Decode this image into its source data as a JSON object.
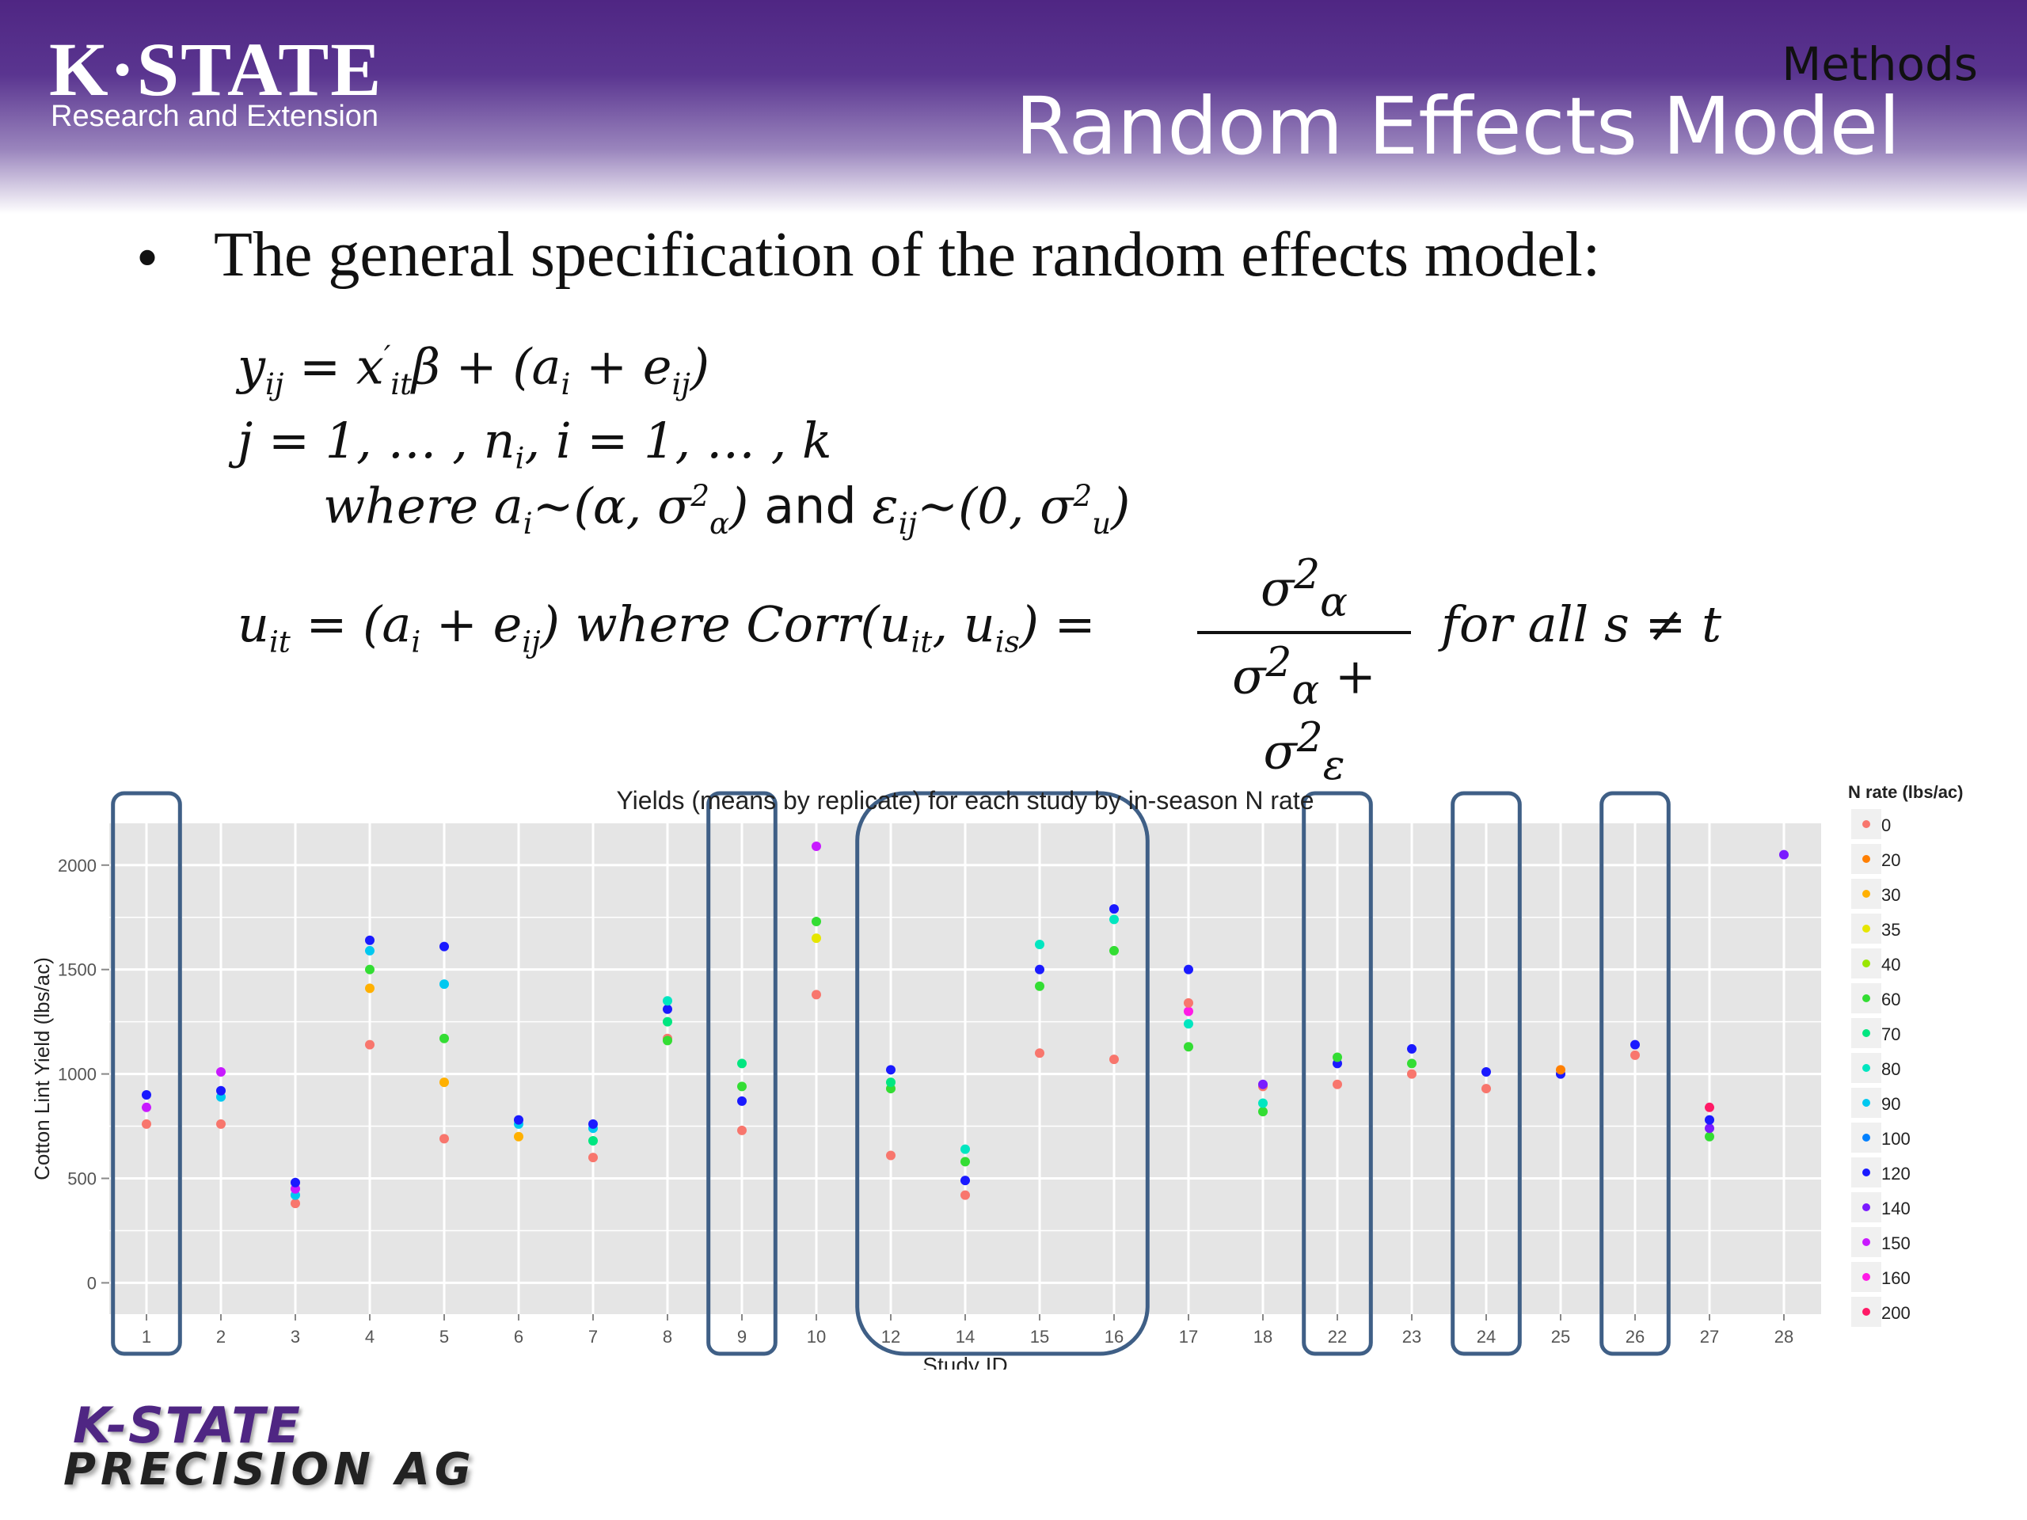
{
  "header": {
    "logo_main": "K·STATE",
    "logo_sub": "Research and Extension",
    "section": "Methods",
    "title": "Random Effects Model"
  },
  "body": {
    "bullet": "•",
    "bullet_text": "The general specification of the random effects model:"
  },
  "equations": {
    "eq1": {
      "y": "y",
      "y_sub": "ij",
      "eq": " = ",
      "x": "x",
      "x_sup": "′",
      "x_sub": "it",
      "rest": "β + (a",
      "a_sub": "i",
      "plus": " + e",
      "e_sub": "ij",
      "close": ")"
    },
    "eq2": {
      "j": "j",
      "mid": " = 1, … , n",
      "n_sub": "i",
      "tail": ", i = 1, … , k"
    },
    "eq3": {
      "where": "where a",
      "a_sub": "i",
      "dist1": "∼(α, σ",
      "sig1_sup": "2",
      "sig1_sub": "α",
      "close1": ") ",
      "and": "and",
      "eps": " ε",
      "eps_sub": "ij",
      "dist2": "∼(0, σ",
      "sig2_sup": "2",
      "sig2_sub": "u",
      "close2": ")"
    },
    "eq4": {
      "u": "u",
      "u_sub": "it",
      "eq": " =  (a",
      "a_sub": "i",
      "plus": " + e",
      "e_sub": "ij",
      "mid": ") where Corr(u",
      "u1_sub": "it",
      "comma": ", u",
      "u2_sub": "is",
      "tail": ") = "
    },
    "frac": {
      "num": "σ",
      "num_sup": "2",
      "num_sub": "α",
      "den1": "σ",
      "den1_sup": "2",
      "den1_sub": "α",
      "den_plus": " + σ",
      "den2_sup": "2",
      "den2_sub": "ε"
    },
    "eq4_right": "for all s ≠ t"
  },
  "chart_data": {
    "type": "scatter",
    "title": "Yields (means by replicate) for each study by in-season N rate",
    "xlabel": "Study ID",
    "ylabel": "Cotton Lint Yield (lbs/ac)",
    "categories": [
      "1",
      "2",
      "3",
      "4",
      "5",
      "6",
      "7",
      "8",
      "9",
      "10",
      "12",
      "14",
      "15",
      "16",
      "17",
      "18",
      "22",
      "23",
      "24",
      "25",
      "26",
      "27",
      "28"
    ],
    "ylim": [
      -150,
      2200
    ],
    "yticks": [
      0,
      500,
      1000,
      1500,
      2000
    ],
    "grid": true,
    "legend_position": "right",
    "legend_title": "N rate (lbs/ac)",
    "legend": [
      {
        "label": "0",
        "color": "#f8766d"
      },
      {
        "label": "20",
        "color": "#ff7f00"
      },
      {
        "label": "30",
        "color": "#ffb000"
      },
      {
        "label": "35",
        "color": "#e6e600"
      },
      {
        "label": "40",
        "color": "#99e600"
      },
      {
        "label": "60",
        "color": "#33dd33"
      },
      {
        "label": "70",
        "color": "#00e680"
      },
      {
        "label": "80",
        "color": "#00e6c0"
      },
      {
        "label": "90",
        "color": "#00c8f0"
      },
      {
        "label": "100",
        "color": "#0080ff"
      },
      {
        "label": "120",
        "color": "#1a1aff"
      },
      {
        "label": "140",
        "color": "#7a1aff"
      },
      {
        "label": "150",
        "color": "#c81aff"
      },
      {
        "label": "160",
        "color": "#ff1ae6"
      },
      {
        "label": "200",
        "color": "#ff1a66"
      }
    ],
    "points": [
      {
        "s": "1",
        "r": "0",
        "y": 760
      },
      {
        "s": "1",
        "r": "150",
        "y": 840
      },
      {
        "s": "1",
        "r": "120",
        "y": 900
      },
      {
        "s": "2",
        "r": "0",
        "y": 760
      },
      {
        "s": "2",
        "r": "90",
        "y": 890
      },
      {
        "s": "2",
        "r": "120",
        "y": 920
      },
      {
        "s": "2",
        "r": "150",
        "y": 1010
      },
      {
        "s": "3",
        "r": "0",
        "y": 380
      },
      {
        "s": "3",
        "r": "90",
        "y": 420
      },
      {
        "s": "3",
        "r": "150",
        "y": 450
      },
      {
        "s": "3",
        "r": "120",
        "y": 480
      },
      {
        "s": "4",
        "r": "0",
        "y": 1140
      },
      {
        "s": "4",
        "r": "30",
        "y": 1410
      },
      {
        "s": "4",
        "r": "60",
        "y": 1500
      },
      {
        "s": "4",
        "r": "90",
        "y": 1590
      },
      {
        "s": "4",
        "r": "120",
        "y": 1640
      },
      {
        "s": "5",
        "r": "0",
        "y": 690
      },
      {
        "s": "5",
        "r": "30",
        "y": 960
      },
      {
        "s": "5",
        "r": "60",
        "y": 1170
      },
      {
        "s": "5",
        "r": "90",
        "y": 1430
      },
      {
        "s": "5",
        "r": "120",
        "y": 1610
      },
      {
        "s": "6",
        "r": "30",
        "y": 700
      },
      {
        "s": "6",
        "r": "90",
        "y": 760
      },
      {
        "s": "6",
        "r": "120",
        "y": 780
      },
      {
        "s": "7",
        "r": "0",
        "y": 600
      },
      {
        "s": "7",
        "r": "70",
        "y": 680
      },
      {
        "s": "7",
        "r": "90",
        "y": 740
      },
      {
        "s": "7",
        "r": "120",
        "y": 760
      },
      {
        "s": "8",
        "r": "0",
        "y": 1170
      },
      {
        "s": "8",
        "r": "60",
        "y": 1160
      },
      {
        "s": "8",
        "r": "70",
        "y": 1250
      },
      {
        "s": "8",
        "r": "120",
        "y": 1310
      },
      {
        "s": "8",
        "r": "80",
        "y": 1350
      },
      {
        "s": "9",
        "r": "0",
        "y": 730
      },
      {
        "s": "9",
        "r": "120",
        "y": 870
      },
      {
        "s": "9",
        "r": "60",
        "y": 940
      },
      {
        "s": "9",
        "r": "70",
        "y": 1050
      },
      {
        "s": "10",
        "r": "0",
        "y": 1380
      },
      {
        "s": "10",
        "r": "35",
        "y": 1650
      },
      {
        "s": "10",
        "r": "60",
        "y": 1730
      },
      {
        "s": "10",
        "r": "150",
        "y": 2090
      },
      {
        "s": "12",
        "r": "0",
        "y": 610
      },
      {
        "s": "12",
        "r": "60",
        "y": 930
      },
      {
        "s": "12",
        "r": "70",
        "y": 960
      },
      {
        "s": "12",
        "r": "120",
        "y": 1020
      },
      {
        "s": "14",
        "r": "0",
        "y": 420
      },
      {
        "s": "14",
        "r": "120",
        "y": 490
      },
      {
        "s": "14",
        "r": "60",
        "y": 580
      },
      {
        "s": "14",
        "r": "80",
        "y": 640
      },
      {
        "s": "15",
        "r": "0",
        "y": 1100
      },
      {
        "s": "15",
        "r": "60",
        "y": 1420
      },
      {
        "s": "15",
        "r": "120",
        "y": 1500
      },
      {
        "s": "15",
        "r": "80",
        "y": 1620
      },
      {
        "s": "16",
        "r": "0",
        "y": 1070
      },
      {
        "s": "16",
        "r": "60",
        "y": 1590
      },
      {
        "s": "16",
        "r": "80",
        "y": 1740
      },
      {
        "s": "16",
        "r": "120",
        "y": 1790
      },
      {
        "s": "17",
        "r": "60",
        "y": 1130
      },
      {
        "s": "17",
        "r": "80",
        "y": 1240
      },
      {
        "s": "17",
        "r": "160",
        "y": 1300
      },
      {
        "s": "17",
        "r": "0",
        "y": 1340
      },
      {
        "s": "17",
        "r": "120",
        "y": 1500
      },
      {
        "s": "18",
        "r": "60",
        "y": 820
      },
      {
        "s": "18",
        "r": "80",
        "y": 860
      },
      {
        "s": "18",
        "r": "0",
        "y": 940
      },
      {
        "s": "18",
        "r": "140",
        "y": 950
      },
      {
        "s": "22",
        "r": "0",
        "y": 950
      },
      {
        "s": "22",
        "r": "120",
        "y": 1050
      },
      {
        "s": "22",
        "r": "60",
        "y": 1080
      },
      {
        "s": "23",
        "r": "0",
        "y": 1000
      },
      {
        "s": "23",
        "r": "60",
        "y": 1050
      },
      {
        "s": "23",
        "r": "120",
        "y": 1120
      },
      {
        "s": "24",
        "r": "0",
        "y": 930
      },
      {
        "s": "24",
        "r": "120",
        "y": 1010
      },
      {
        "s": "25",
        "r": "120",
        "y": 1000
      },
      {
        "s": "25",
        "r": "20",
        "y": 1020
      },
      {
        "s": "26",
        "r": "0",
        "y": 1090
      },
      {
        "s": "26",
        "r": "120",
        "y": 1140
      },
      {
        "s": "27",
        "r": "60",
        "y": 700
      },
      {
        "s": "27",
        "r": "140",
        "y": 740
      },
      {
        "s": "27",
        "r": "120",
        "y": 780
      },
      {
        "s": "27",
        "r": "200",
        "y": 840
      },
      {
        "s": "28",
        "r": "140",
        "y": 2050
      }
    ],
    "highlighted_studies": [
      [
        "1"
      ],
      [
        "9"
      ],
      [
        "12",
        "14",
        "15",
        "16"
      ],
      [
        "22"
      ],
      [
        "24"
      ],
      [
        "26"
      ]
    ]
  },
  "footer": {
    "logo_line1": "K-STATE",
    "logo_line2": "PRECISION AG"
  }
}
